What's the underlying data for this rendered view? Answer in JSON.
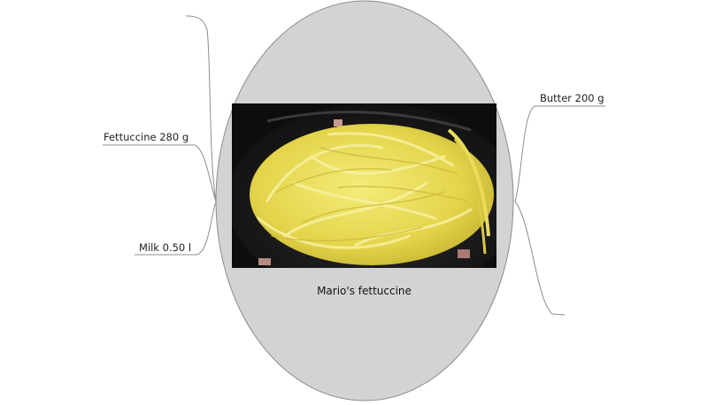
{
  "center": {
    "title": "Mario's fettuccine",
    "image_alt": "photo-of-fettuccine-in-pan"
  },
  "branches": {
    "left": [
      {
        "label": "Fettuccine 280 g"
      },
      {
        "label": "Milk 0.50 l"
      }
    ],
    "right": [
      {
        "label": "Butter 200 g"
      }
    ]
  },
  "colors": {
    "node_fill": "#d3d3d3",
    "node_stroke": "#8c8c8c",
    "line": "#8c8c8c"
  }
}
